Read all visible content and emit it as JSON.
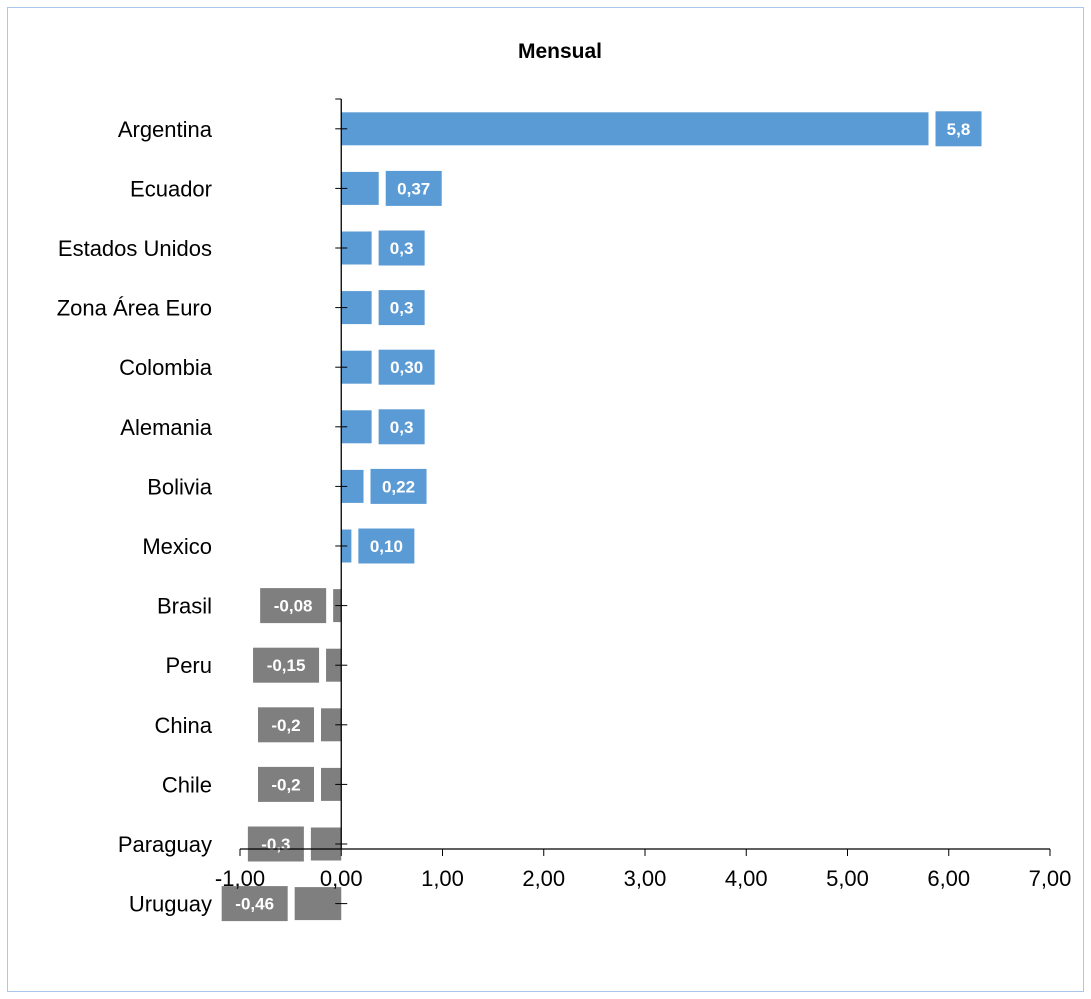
{
  "chart_data": {
    "type": "bar",
    "orientation": "horizontal",
    "title": "Mensual",
    "categories": [
      "Argentina",
      "Ecuador",
      "Estados Unidos",
      "Zona Área Euro",
      "Colombia",
      "Alemania",
      "Bolivia",
      "Mexico",
      "Brasil",
      "Peru",
      "China",
      "Chile",
      "Paraguay",
      "Uruguay"
    ],
    "values": [
      5.8,
      0.37,
      0.3,
      0.3,
      0.3,
      0.3,
      0.22,
      0.1,
      -0.08,
      -0.15,
      -0.2,
      -0.2,
      -0.3,
      -0.46
    ],
    "data_labels": [
      "5,8",
      "0,37",
      "0,3",
      "0,3",
      "0,30",
      "0,3",
      "0,22",
      "0,10",
      "-0,08",
      "-0,15",
      "-0,2",
      "-0,2",
      "-0,3",
      "-0,46"
    ],
    "xlim": [
      -1,
      7
    ],
    "x_ticks": [
      -1,
      0,
      1,
      2,
      3,
      4,
      5,
      6,
      7
    ],
    "x_tick_labels": [
      "-1,00",
      "0,00",
      "1,00",
      "2,00",
      "3,00",
      "4,00",
      "5,00",
      "6,00",
      "7,00"
    ],
    "colors": {
      "positive": "#5b9bd5",
      "negative": "#7f7f7f"
    },
    "grid": false,
    "legend": "none"
  }
}
